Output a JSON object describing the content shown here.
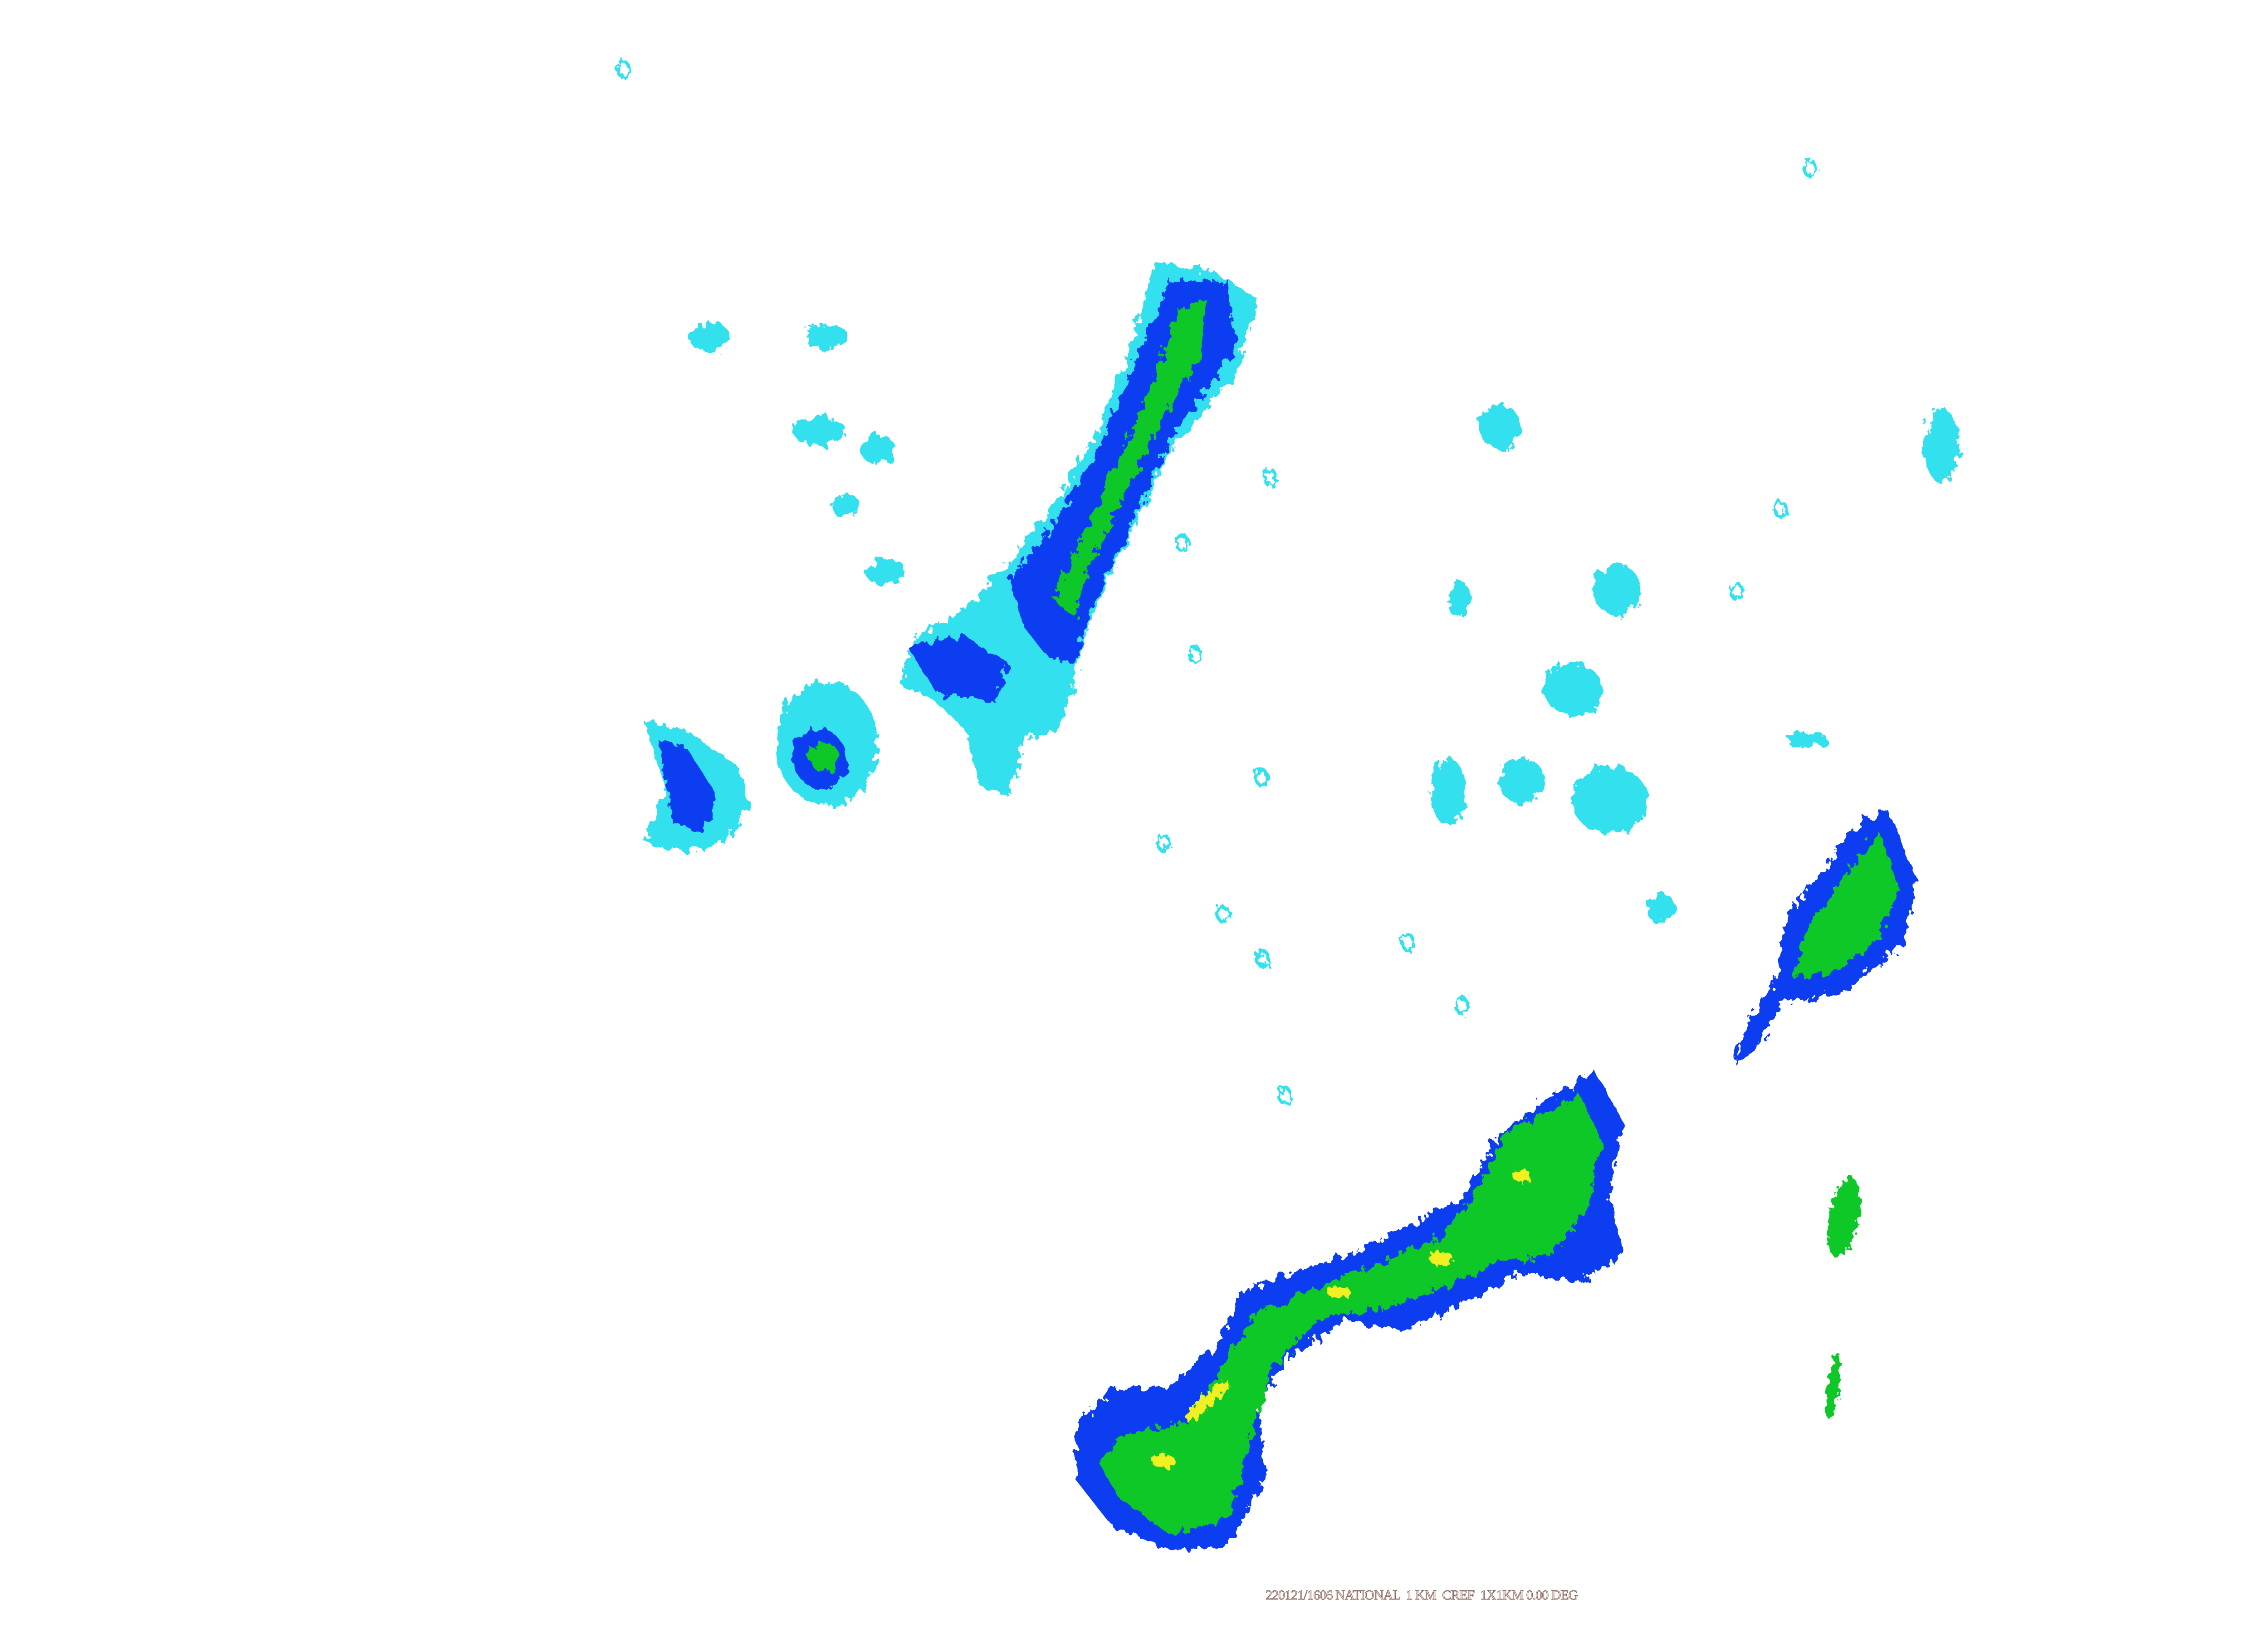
{
  "product_caption": "220121/1606 NATIONAL  1 KM  CREF  1X1KM 0.00 DEG",
  "colors": {
    "background": "#ffffff",
    "light_echo": "#33e0ee",
    "moderate_echo": "#0a3cf0",
    "strong_echo": "#10c828",
    "heavy_echo": "#f0f020"
  }
}
